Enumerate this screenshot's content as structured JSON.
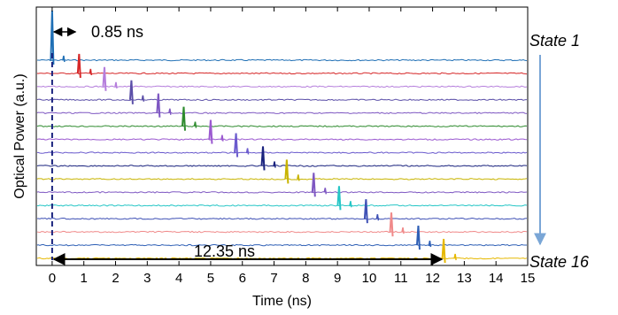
{
  "chart_data": {
    "type": "line",
    "title": "",
    "xlabel": "Time (ns)",
    "ylabel": "Optical Power (a.u.)",
    "xlim": [
      -0.5,
      15
    ],
    "xticks": [
      0,
      1,
      2,
      3,
      4,
      5,
      6,
      7,
      8,
      9,
      10,
      11,
      12,
      13,
      14,
      15
    ],
    "pulse_spacing_ns": 0.85,
    "total_span_ns": 12.35,
    "series": [
      {
        "pulse_ns": 0.0,
        "color": "#1f6fb5"
      },
      {
        "pulse_ns": 0.85,
        "color": "#d62728"
      },
      {
        "pulse_ns": 1.65,
        "color": "#b57edc"
      },
      {
        "pulse_ns": 2.5,
        "color": "#5b4fa8"
      },
      {
        "pulse_ns": 3.35,
        "color": "#7e57c2"
      },
      {
        "pulse_ns": 4.15,
        "color": "#2e8b2e"
      },
      {
        "pulse_ns": 5.0,
        "color": "#9b59d0"
      },
      {
        "pulse_ns": 5.8,
        "color": "#6a5acd"
      },
      {
        "pulse_ns": 6.65,
        "color": "#1a237e"
      },
      {
        "pulse_ns": 7.4,
        "color": "#c8b400"
      },
      {
        "pulse_ns": 8.25,
        "color": "#7e57c2"
      },
      {
        "pulse_ns": 9.05,
        "color": "#26c6c6"
      },
      {
        "pulse_ns": 9.9,
        "color": "#3f51b5"
      },
      {
        "pulse_ns": 10.7,
        "color": "#f08a8a"
      },
      {
        "pulse_ns": 11.55,
        "color": "#2e5fb5"
      },
      {
        "pulse_ns": 12.35,
        "color": "#e6b800"
      }
    ],
    "annotations": {
      "spacing_label": "0.85 ns",
      "span_label": "12.35 ns",
      "state_top": "State 1",
      "state_bottom": "State 16"
    },
    "colors": {
      "axis": "#000000",
      "dashed_line": "#1a237e",
      "state_arrow": "#7aa6d6"
    }
  }
}
